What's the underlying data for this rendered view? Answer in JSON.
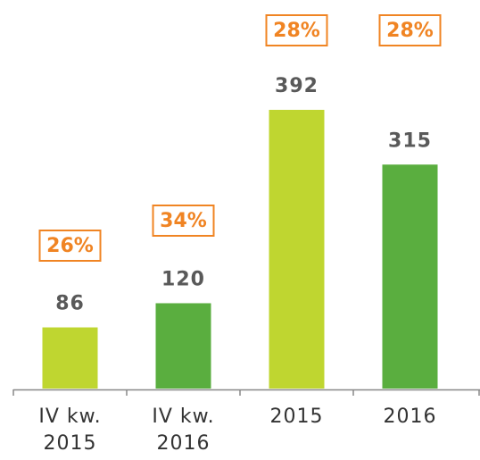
{
  "chart_data": {
    "type": "bar",
    "categories": [
      "IV kw. 2015",
      "IV kw. 2016",
      "2015",
      "2016"
    ],
    "values": [
      86,
      120,
      392,
      315
    ],
    "colors": [
      "#bfd630",
      "#5aae3f",
      "#bfd630",
      "#5aae3f"
    ],
    "annotations": [
      "26%",
      "34%",
      "28%",
      "28%"
    ],
    "ylim": [
      0,
      400
    ]
  }
}
